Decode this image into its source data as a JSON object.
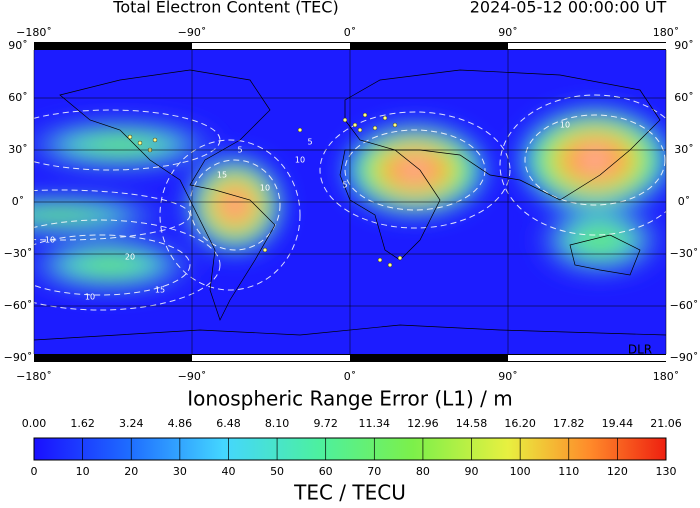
{
  "header": {
    "title": "Total Electron Content (TEC)",
    "timestamp": "2024-05-12  00:00:00 UT"
  },
  "map": {
    "lon_ticks": [
      "−180˚",
      "−90˚",
      "0˚",
      "90˚",
      "180˚"
    ],
    "lat_ticks": [
      "90˚",
      "60˚",
      "30˚",
      "0˚",
      "−30˚",
      "−60˚",
      "−90˚"
    ],
    "contour_labels": [
      5,
      10,
      15,
      10,
      5,
      10,
      20,
      15,
      10,
      5,
      10
    ],
    "credit": "DLR"
  },
  "colorbar": {
    "top_label": "Ionospheric Range Error (L1) / m",
    "top_ticks": [
      "0.00",
      "1.62",
      "3.24",
      "4.86",
      "6.48",
      "8.10",
      "9.72",
      "11.34",
      "12.96",
      "14.58",
      "16.20",
      "17.82",
      "19.44",
      "21.06"
    ],
    "bottom_ticks": [
      "0",
      "10",
      "20",
      "30",
      "40",
      "50",
      "60",
      "70",
      "80",
      "90",
      "100",
      "110",
      "120",
      "130"
    ],
    "bottom_label": "TEC / TECU"
  }
}
